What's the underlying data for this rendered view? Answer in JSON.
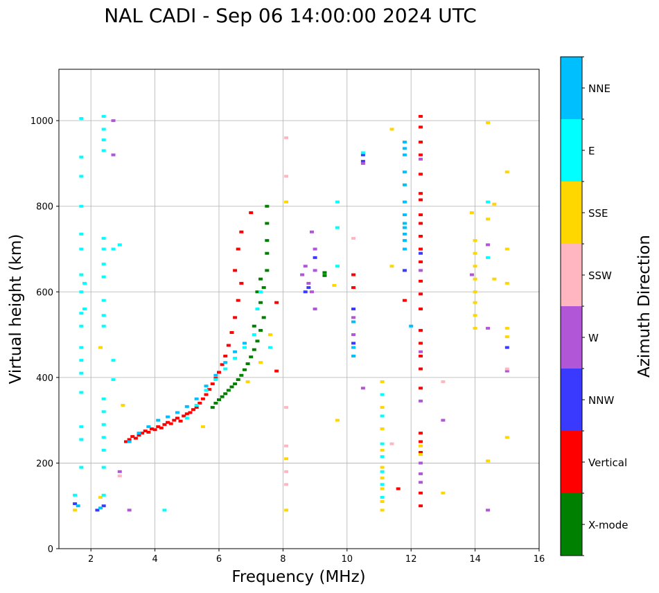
{
  "chart_data": {
    "type": "scatter",
    "title": "NAL CADI - Sep 06 14:00:00 2024 UTC",
    "xlabel": "Frequency (MHz)",
    "ylabel": "Virtual height (km)",
    "xlim": [
      1,
      16
    ],
    "ylim": [
      0,
      1120
    ],
    "x_ticks": [
      2,
      4,
      6,
      8,
      10,
      12,
      14,
      16
    ],
    "y_ticks": [
      0,
      200,
      400,
      600,
      800,
      1000
    ],
    "grid": true,
    "colorbar": {
      "label": "Azimuth Direction",
      "categories": [
        {
          "name": "X-mode",
          "color": "#008000"
        },
        {
          "name": "Vertical",
          "color": "#ff0000"
        },
        {
          "name": "NNW",
          "color": "#3a3aff"
        },
        {
          "name": "W",
          "color": "#b256d8"
        },
        {
          "name": "SSW",
          "color": "#ffb6c1"
        },
        {
          "name": "SSE",
          "color": "#ffd700"
        },
        {
          "name": "E",
          "color": "#00ffff"
        },
        {
          "name": "NNE",
          "color": "#00bfff"
        }
      ]
    },
    "series": [
      {
        "name": "Vertical",
        "points": [
          [
            3.1,
            250
          ],
          [
            3.2,
            255
          ],
          [
            3.3,
            262
          ],
          [
            3.4,
            258
          ],
          [
            3.5,
            265
          ],
          [
            3.6,
            270
          ],
          [
            3.7,
            275
          ],
          [
            3.8,
            272
          ],
          [
            3.9,
            280
          ],
          [
            4.0,
            278
          ],
          [
            4.1,
            285
          ],
          [
            4.2,
            282
          ],
          [
            4.3,
            290
          ],
          [
            4.4,
            295
          ],
          [
            4.5,
            292
          ],
          [
            4.6,
            300
          ],
          [
            4.7,
            305
          ],
          [
            4.8,
            298
          ],
          [
            4.9,
            310
          ],
          [
            5.0,
            315
          ],
          [
            5.1,
            318
          ],
          [
            5.2,
            325
          ],
          [
            5.3,
            330
          ],
          [
            5.4,
            340
          ],
          [
            5.5,
            350
          ],
          [
            5.6,
            360
          ],
          [
            5.7,
            372
          ],
          [
            5.8,
            385
          ],
          [
            5.9,
            398
          ],
          [
            6.0,
            412
          ],
          [
            6.1,
            430
          ],
          [
            6.2,
            450
          ],
          [
            6.3,
            475
          ],
          [
            6.4,
            505
          ],
          [
            6.5,
            540
          ],
          [
            6.6,
            580
          ],
          [
            6.7,
            620
          ],
          [
            6.5,
            650
          ],
          [
            6.6,
            700
          ],
          [
            6.7,
            740
          ],
          [
            7.0,
            785
          ],
          [
            10.2,
            640
          ],
          [
            10.2,
            610
          ],
          [
            11.6,
            140
          ],
          [
            11.8,
            580
          ],
          [
            12.3,
            1010
          ],
          [
            12.3,
            985
          ],
          [
            12.3,
            950
          ],
          [
            12.3,
            920
          ],
          [
            12.3,
            875
          ],
          [
            12.3,
            830
          ],
          [
            12.3,
            815
          ],
          [
            12.3,
            780
          ],
          [
            12.3,
            760
          ],
          [
            12.3,
            730
          ],
          [
            12.3,
            700
          ],
          [
            12.3,
            670
          ],
          [
            12.3,
            625
          ],
          [
            12.3,
            595
          ],
          [
            12.3,
            560
          ],
          [
            12.3,
            510
          ],
          [
            12.3,
            480
          ],
          [
            12.3,
            450
          ],
          [
            12.3,
            420
          ],
          [
            12.3,
            375
          ],
          [
            12.3,
            270
          ],
          [
            12.3,
            250
          ],
          [
            12.3,
            225
          ],
          [
            12.3,
            130
          ],
          [
            12.3,
            100
          ],
          [
            7.8,
            415
          ],
          [
            7.8,
            575
          ]
        ]
      },
      {
        "name": "X-mode",
        "points": [
          [
            5.8,
            330
          ],
          [
            5.9,
            340
          ],
          [
            6.0,
            348
          ],
          [
            6.1,
            355
          ],
          [
            6.2,
            362
          ],
          [
            6.3,
            370
          ],
          [
            6.4,
            378
          ],
          [
            6.5,
            385
          ],
          [
            6.6,
            395
          ],
          [
            6.7,
            405
          ],
          [
            6.8,
            418
          ],
          [
            6.9,
            432
          ],
          [
            7.0,
            448
          ],
          [
            7.1,
            465
          ],
          [
            7.2,
            485
          ],
          [
            7.3,
            510
          ],
          [
            7.4,
            540
          ],
          [
            7.3,
            575
          ],
          [
            7.4,
            610
          ],
          [
            7.5,
            650
          ],
          [
            7.5,
            690
          ],
          [
            7.5,
            720
          ],
          [
            7.5,
            760
          ],
          [
            7.5,
            800
          ],
          [
            7.2,
            600
          ],
          [
            7.1,
            520
          ],
          [
            7.3,
            630
          ],
          [
            9.3,
            645
          ],
          [
            9.3,
            638
          ]
        ]
      },
      {
        "name": "NNW",
        "points": [
          [
            1.5,
            105
          ],
          [
            2.2,
            90
          ],
          [
            2.4,
            100
          ],
          [
            8.8,
            610
          ],
          [
            9.0,
            680
          ],
          [
            10.2,
            560
          ],
          [
            10.2,
            480
          ],
          [
            10.5,
            920
          ],
          [
            10.5,
            905
          ],
          [
            11.8,
            650
          ],
          [
            12.3,
            690
          ],
          [
            15.0,
            470
          ],
          [
            8.7,
            600
          ]
        ]
      },
      {
        "name": "W",
        "points": [
          [
            8.6,
            640
          ],
          [
            8.7,
            660
          ],
          [
            8.8,
            620
          ],
          [
            8.9,
            600
          ],
          [
            9.0,
            700
          ],
          [
            9.0,
            650
          ],
          [
            8.9,
            740
          ],
          [
            9.0,
            560
          ],
          [
            10.2,
            540
          ],
          [
            10.2,
            500
          ],
          [
            10.5,
            900
          ],
          [
            10.5,
            375
          ],
          [
            12.3,
            910
          ],
          [
            12.3,
            650
          ],
          [
            12.3,
            460
          ],
          [
            12.3,
            345
          ],
          [
            12.3,
            200
          ],
          [
            12.3,
            175
          ],
          [
            12.3,
            155
          ],
          [
            13.0,
            300
          ],
          [
            14.4,
            710
          ],
          [
            14.4,
            515
          ],
          [
            14.4,
            90
          ],
          [
            15.0,
            415
          ],
          [
            13.9,
            640
          ],
          [
            2.7,
            1000
          ],
          [
            2.7,
            920
          ],
          [
            2.9,
            180
          ],
          [
            3.2,
            90
          ]
        ]
      },
      {
        "name": "SSW",
        "points": [
          [
            8.1,
            960
          ],
          [
            8.1,
            870
          ],
          [
            8.1,
            330
          ],
          [
            8.1,
            240
          ],
          [
            8.1,
            180
          ],
          [
            8.1,
            150
          ],
          [
            10.2,
            725
          ],
          [
            11.4,
            245
          ],
          [
            13.0,
            390
          ],
          [
            15.0,
            420
          ],
          [
            2.9,
            170
          ]
        ]
      },
      {
        "name": "SSE",
        "points": [
          [
            1.5,
            90
          ],
          [
            2.3,
            470
          ],
          [
            3.0,
            335
          ],
          [
            5.5,
            285
          ],
          [
            6.9,
            390
          ],
          [
            7.3,
            435
          ],
          [
            7.6,
            500
          ],
          [
            8.1,
            810
          ],
          [
            8.1,
            210
          ],
          [
            8.1,
            90
          ],
          [
            9.6,
            615
          ],
          [
            9.7,
            300
          ],
          [
            11.1,
            390
          ],
          [
            11.1,
            330
          ],
          [
            11.1,
            280
          ],
          [
            11.1,
            230
          ],
          [
            11.1,
            190
          ],
          [
            11.1,
            165
          ],
          [
            11.1,
            140
          ],
          [
            11.1,
            110
          ],
          [
            11.1,
            90
          ],
          [
            11.4,
            980
          ],
          [
            11.4,
            660
          ],
          [
            12.3,
            240
          ],
          [
            12.3,
            220
          ],
          [
            13.0,
            130
          ],
          [
            14.0,
            720
          ],
          [
            14.0,
            690
          ],
          [
            14.0,
            660
          ],
          [
            14.0,
            630
          ],
          [
            14.0,
            600
          ],
          [
            14.0,
            575
          ],
          [
            14.0,
            545
          ],
          [
            14.0,
            515
          ],
          [
            13.9,
            785
          ],
          [
            14.4,
            995
          ],
          [
            14.4,
            770
          ],
          [
            14.4,
            205
          ],
          [
            14.6,
            805
          ],
          [
            14.6,
            630
          ],
          [
            15.0,
            880
          ],
          [
            15.0,
            700
          ],
          [
            15.0,
            620
          ],
          [
            15.0,
            515
          ],
          [
            15.0,
            495
          ],
          [
            15.0,
            260
          ],
          [
            2.3,
            120
          ]
        ]
      },
      {
        "name": "E",
        "points": [
          [
            1.5,
            125
          ],
          [
            1.7,
            1005
          ],
          [
            1.7,
            915
          ],
          [
            1.7,
            870
          ],
          [
            1.7,
            800
          ],
          [
            1.7,
            735
          ],
          [
            1.7,
            700
          ],
          [
            1.7,
            640
          ],
          [
            1.7,
            600
          ],
          [
            1.7,
            550
          ],
          [
            1.7,
            520
          ],
          [
            1.7,
            470
          ],
          [
            1.7,
            440
          ],
          [
            1.7,
            410
          ],
          [
            1.7,
            365
          ],
          [
            1.7,
            285
          ],
          [
            1.7,
            255
          ],
          [
            1.7,
            190
          ],
          [
            2.4,
            1010
          ],
          [
            2.4,
            980
          ],
          [
            2.4,
            955
          ],
          [
            2.4,
            930
          ],
          [
            2.4,
            725
          ],
          [
            2.4,
            700
          ],
          [
            2.4,
            665
          ],
          [
            2.4,
            635
          ],
          [
            2.4,
            580
          ],
          [
            2.4,
            545
          ],
          [
            2.4,
            520
          ],
          [
            2.4,
            350
          ],
          [
            2.4,
            320
          ],
          [
            2.4,
            290
          ],
          [
            2.4,
            260
          ],
          [
            2.4,
            230
          ],
          [
            2.4,
            190
          ],
          [
            2.4,
            125
          ],
          [
            2.7,
            700
          ],
          [
            2.7,
            440
          ],
          [
            2.7,
            395
          ],
          [
            2.9,
            710
          ],
          [
            4.3,
            90
          ],
          [
            5.0,
            305
          ],
          [
            5.3,
            335
          ],
          [
            5.6,
            370
          ],
          [
            5.9,
            395
          ],
          [
            6.2,
            420
          ],
          [
            6.5,
            445
          ],
          [
            6.8,
            470
          ],
          [
            7.1,
            500
          ],
          [
            7.2,
            560
          ],
          [
            7.3,
            600
          ],
          [
            7.6,
            470
          ],
          [
            9.7,
            810
          ],
          [
            9.7,
            750
          ],
          [
            9.7,
            660
          ],
          [
            10.5,
            925
          ],
          [
            11.1,
            360
          ],
          [
            11.1,
            310
          ],
          [
            11.1,
            245
          ],
          [
            11.1,
            215
          ],
          [
            11.1,
            180
          ],
          [
            11.1,
            150
          ],
          [
            11.1,
            120
          ],
          [
            14.4,
            680
          ],
          [
            14.4,
            810
          ],
          [
            1.8,
            560
          ],
          [
            1.8,
            620
          ]
        ]
      },
      {
        "name": "NNE",
        "points": [
          [
            1.6,
            100
          ],
          [
            2.3,
            95
          ],
          [
            3.2,
            250
          ],
          [
            3.5,
            270
          ],
          [
            3.8,
            285
          ],
          [
            4.1,
            300
          ],
          [
            4.4,
            308
          ],
          [
            4.7,
            318
          ],
          [
            5.0,
            332
          ],
          [
            5.3,
            350
          ],
          [
            5.6,
            380
          ],
          [
            5.9,
            405
          ],
          [
            6.2,
            435
          ],
          [
            6.5,
            460
          ],
          [
            6.8,
            480
          ],
          [
            10.2,
            530
          ],
          [
            10.2,
            470
          ],
          [
            10.2,
            450
          ],
          [
            11.8,
            950
          ],
          [
            11.8,
            920
          ],
          [
            11.8,
            880
          ],
          [
            11.8,
            850
          ],
          [
            11.8,
            810
          ],
          [
            11.8,
            780
          ],
          [
            11.8,
            750
          ],
          [
            11.8,
            720
          ],
          [
            11.8,
            700
          ],
          [
            12.0,
            520
          ],
          [
            11.8,
            935
          ],
          [
            11.8,
            760
          ],
          [
            11.8,
            735
          ]
        ]
      }
    ]
  }
}
